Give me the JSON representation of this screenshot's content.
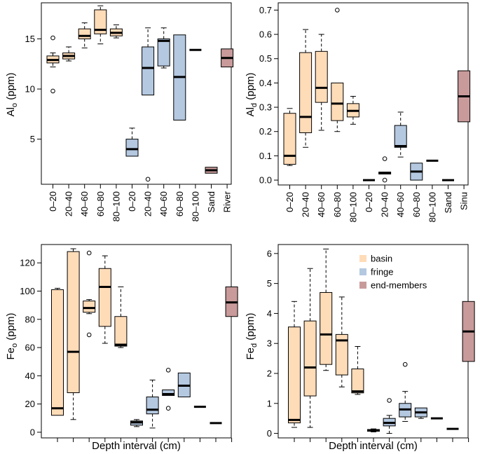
{
  "colors": {
    "basin": "#ffdcb8",
    "fringe": "#b4c8e0",
    "end_members": "#c99a9a",
    "stroke": "#000000"
  },
  "legend": [
    {
      "key": "basin",
      "label": "basin"
    },
    {
      "key": "fringe",
      "label": "fringe"
    },
    {
      "key": "end_members",
      "label": "end-members"
    }
  ],
  "chart_data": [
    {
      "type": "box",
      "id": "alo",
      "ylabel": {
        "main": "Al",
        "sub": "o",
        "unit": " (ppm)"
      },
      "xlabel": "",
      "ylim": [
        0.5,
        18.6
      ],
      "yticks": [
        5,
        10,
        15
      ],
      "categories": [
        "0–20",
        "20–40",
        "40–60",
        "60–80",
        "80–100",
        "0–20",
        "20–40",
        "40–60",
        "60–80",
        "80–100",
        "Sand",
        "River"
      ],
      "groups": [
        "basin",
        "basin",
        "basin",
        "basin",
        "basin",
        "fringe",
        "fringe",
        "fringe",
        "fringe",
        "fringe",
        "end_members",
        "end_members"
      ],
      "boxes": [
        {
          "wl": 12.2,
          "q1": 12.6,
          "med": 12.9,
          "q3": 13.3,
          "wh": 13.6,
          "outliers": [
            15.1,
            9.8
          ]
        },
        {
          "wl": 12.8,
          "q1": 13.0,
          "med": 13.3,
          "q3": 13.6,
          "wh": 14.2,
          "outliers": []
        },
        {
          "wl": 14.1,
          "q1": 15.0,
          "med": 15.3,
          "q3": 16.0,
          "wh": 16.6,
          "outliers": []
        },
        {
          "wl": 14.5,
          "q1": 15.5,
          "med": 15.9,
          "q3": 17.9,
          "wh": 18.3,
          "outliers": []
        },
        {
          "wl": 15.1,
          "q1": 15.3,
          "med": 15.6,
          "q3": 16.0,
          "wh": 16.4,
          "outliers": []
        },
        {
          "wl": 3.3,
          "q1": 3.3,
          "med": 4.0,
          "q3": 5.0,
          "wh": 6.1,
          "outliers": []
        },
        {
          "wl": 9.4,
          "q1": 9.4,
          "med": 12.1,
          "q3": 14.2,
          "wh": 16.1,
          "outliers": [
            1.0
          ]
        },
        {
          "wl": 12.1,
          "q1": 12.3,
          "med": 14.8,
          "q3": 15.0,
          "wh": 16.1,
          "outliers": []
        },
        {
          "wl": 6.9,
          "q1": 6.9,
          "med": 11.2,
          "q3": 15.4,
          "wh": 15.4,
          "outliers": []
        },
        {
          "wl": 13.9,
          "q1": 13.9,
          "med": 13.9,
          "q3": 13.9,
          "wh": 13.9,
          "outliers": []
        },
        {
          "wl": 1.6,
          "q1": 1.6,
          "med": 1.9,
          "q3": 2.2,
          "wh": 2.2,
          "outliers": []
        },
        {
          "wl": 12.2,
          "q1": 12.2,
          "med": 13.1,
          "q3": 14.0,
          "wh": 14.0,
          "outliers": []
        }
      ]
    },
    {
      "type": "box",
      "id": "ald",
      "ylabel": {
        "main": "Al",
        "sub": "d",
        "unit": " (ppm)"
      },
      "xlabel": "",
      "ylim": [
        -0.02,
        0.73
      ],
      "yticks": [
        0.0,
        0.1,
        0.2,
        0.3,
        0.4,
        0.5,
        0.6,
        0.7
      ],
      "ytick_labels": [
        "0.0",
        "0.1",
        "0.2",
        "0.3",
        "0.4",
        "0.5",
        "0.6",
        "0.7"
      ],
      "categories": [
        "0–20",
        "20–40",
        "40–60",
        "60–80",
        "80–100",
        "0–20",
        "20–40",
        "40–60",
        "60–80",
        "80–100",
        "Sand",
        "Sinu"
      ],
      "groups": [
        "basin",
        "basin",
        "basin",
        "basin",
        "basin",
        "fringe",
        "fringe",
        "fringe",
        "fringe",
        "fringe",
        "end_members",
        "end_members"
      ],
      "boxes": [
        {
          "wl": 0.06,
          "q1": 0.065,
          "med": 0.1,
          "q3": 0.275,
          "wh": 0.295,
          "outliers": []
        },
        {
          "wl": 0.135,
          "q1": 0.195,
          "med": 0.26,
          "q3": 0.525,
          "wh": 0.62,
          "outliers": []
        },
        {
          "wl": 0.205,
          "q1": 0.32,
          "med": 0.38,
          "q3": 0.53,
          "wh": 0.6,
          "outliers": []
        },
        {
          "wl": 0.2,
          "q1": 0.245,
          "med": 0.315,
          "q3": 0.4,
          "wh": 0.4,
          "outliers": [
            0.7
          ]
        },
        {
          "wl": 0.23,
          "q1": 0.26,
          "med": 0.285,
          "q3": 0.315,
          "wh": 0.345,
          "outliers": []
        },
        {
          "wl": 0.0,
          "q1": 0.0,
          "med": 0.0,
          "q3": 0.0,
          "wh": 0.0,
          "outliers": []
        },
        {
          "wl": 0.025,
          "q1": 0.025,
          "med": 0.03,
          "q3": 0.033,
          "wh": 0.033,
          "outliers": [
            0.088,
            0.0
          ]
        },
        {
          "wl": 0.095,
          "q1": 0.135,
          "med": 0.14,
          "q3": 0.225,
          "wh": 0.28,
          "outliers": []
        },
        {
          "wl": 0.0,
          "q1": 0.0,
          "med": 0.035,
          "q3": 0.07,
          "wh": 0.07,
          "outliers": []
        },
        {
          "wl": 0.08,
          "q1": 0.08,
          "med": 0.08,
          "q3": 0.08,
          "wh": 0.08,
          "outliers": []
        },
        {
          "wl": 0.0,
          "q1": 0.0,
          "med": 0.0,
          "q3": 0.0,
          "wh": 0.0,
          "outliers": []
        },
        {
          "wl": 0.24,
          "q1": 0.24,
          "med": 0.345,
          "q3": 0.45,
          "wh": 0.45,
          "outliers": []
        }
      ]
    },
    {
      "type": "box",
      "id": "feo",
      "ylabel": {
        "main": "Fe",
        "sub": "o",
        "unit": " (ppm)"
      },
      "xlabel": "Depth interval (cm)",
      "ylim": [
        -4,
        133
      ],
      "yticks": [
        0,
        20,
        40,
        60,
        80,
        100,
        120
      ],
      "categories": [
        "0–20",
        "20–40",
        "40–60",
        "60–80",
        "80–100",
        "0–20",
        "20–40",
        "40–60",
        "60–80",
        "80–100",
        "Sand",
        "River"
      ],
      "groups": [
        "basin",
        "basin",
        "basin",
        "basin",
        "basin",
        "fringe",
        "fringe",
        "fringe",
        "fringe",
        "fringe",
        "end_members",
        "end_members"
      ],
      "boxes": [
        {
          "wl": 12,
          "q1": 12,
          "med": 17,
          "q3": 101,
          "wh": 102,
          "outliers": []
        },
        {
          "wl": 9,
          "q1": 28,
          "med": 57,
          "q3": 128,
          "wh": 130,
          "outliers": []
        },
        {
          "wl": 84,
          "q1": 85,
          "med": 88,
          "q3": 93,
          "wh": 94,
          "outliers": [
            127,
            69
          ]
        },
        {
          "wl": 63,
          "q1": 75,
          "med": 103,
          "q3": 116,
          "wh": 125,
          "outliers": []
        },
        {
          "wl": 60,
          "q1": 61,
          "med": 62,
          "q3": 82,
          "wh": 103,
          "outliers": []
        },
        {
          "wl": 4,
          "q1": 5,
          "med": 7,
          "q3": 8,
          "wh": 9,
          "outliers": []
        },
        {
          "wl": 3,
          "q1": 13,
          "med": 16,
          "q3": 25,
          "wh": 37,
          "outliers": []
        },
        {
          "wl": 26,
          "q1": 26,
          "med": 27,
          "q3": 30,
          "wh": 30,
          "outliers": [
            44,
            17
          ]
        },
        {
          "wl": 25,
          "q1": 25,
          "med": 33,
          "q3": 42,
          "wh": 42,
          "outliers": []
        },
        {
          "wl": 18,
          "q1": 18,
          "med": 18,
          "q3": 18,
          "wh": 18,
          "outliers": []
        },
        {
          "wl": 6.5,
          "q1": 6.5,
          "med": 6.5,
          "q3": 6.5,
          "wh": 6.5,
          "outliers": []
        },
        {
          "wl": 82,
          "q1": 82,
          "med": 92,
          "q3": 103,
          "wh": 103,
          "outliers": []
        }
      ]
    },
    {
      "type": "box",
      "id": "fed",
      "ylabel": {
        "main": "Fe",
        "sub": "d",
        "unit": " (ppm)"
      },
      "xlabel": "Depth interval (cm)",
      "ylim": [
        -0.15,
        6.3
      ],
      "yticks": [
        0,
        1,
        2,
        3,
        4,
        5,
        6
      ],
      "categories": [
        "0–20",
        "20–40",
        "40–60",
        "60–80",
        "80–100",
        "0–20",
        "20–40",
        "40–60",
        "60–80",
        "80–100",
        "Sand",
        "Sinu"
      ],
      "groups": [
        "basin",
        "basin",
        "basin",
        "basin",
        "basin",
        "fringe",
        "fringe",
        "fringe",
        "fringe",
        "fringe",
        "end_members",
        "end_members"
      ],
      "legend_position": "top-right",
      "boxes": [
        {
          "wl": 0.2,
          "q1": 0.35,
          "med": 0.45,
          "q3": 3.55,
          "wh": 4.4,
          "outliers": []
        },
        {
          "wl": 0.2,
          "q1": 1.25,
          "med": 2.2,
          "q3": 3.75,
          "wh": 5.5,
          "outliers": []
        },
        {
          "wl": 2.1,
          "q1": 2.3,
          "med": 3.3,
          "q3": 4.7,
          "wh": 6.15,
          "outliers": []
        },
        {
          "wl": 1.55,
          "q1": 1.95,
          "med": 3.1,
          "q3": 3.3,
          "wh": 4.55,
          "outliers": []
        },
        {
          "wl": 1.3,
          "q1": 1.35,
          "med": 1.4,
          "q3": 2.15,
          "wh": 2.9,
          "outliers": []
        },
        {
          "wl": 0.05,
          "q1": 0.07,
          "med": 0.1,
          "q3": 0.13,
          "wh": 0.15,
          "outliers": []
        },
        {
          "wl": 0.0,
          "q1": 0.25,
          "med": 0.35,
          "q3": 0.5,
          "wh": 0.6,
          "outliers": [
            1.1
          ]
        },
        {
          "wl": 0.4,
          "q1": 0.55,
          "med": 0.8,
          "q3": 1.0,
          "wh": 1.4,
          "outliers": [
            2.3
          ]
        },
        {
          "wl": 0.5,
          "q1": 0.55,
          "med": 0.7,
          "q3": 0.85,
          "wh": 0.85,
          "outliers": []
        },
        {
          "wl": 0.5,
          "q1": 0.5,
          "med": 0.5,
          "q3": 0.5,
          "wh": 0.5,
          "outliers": []
        },
        {
          "wl": 0.15,
          "q1": 0.15,
          "med": 0.15,
          "q3": 0.15,
          "wh": 0.15,
          "outliers": []
        },
        {
          "wl": 2.4,
          "q1": 2.4,
          "med": 3.4,
          "q3": 4.4,
          "wh": 4.4,
          "outliers": []
        }
      ]
    }
  ]
}
